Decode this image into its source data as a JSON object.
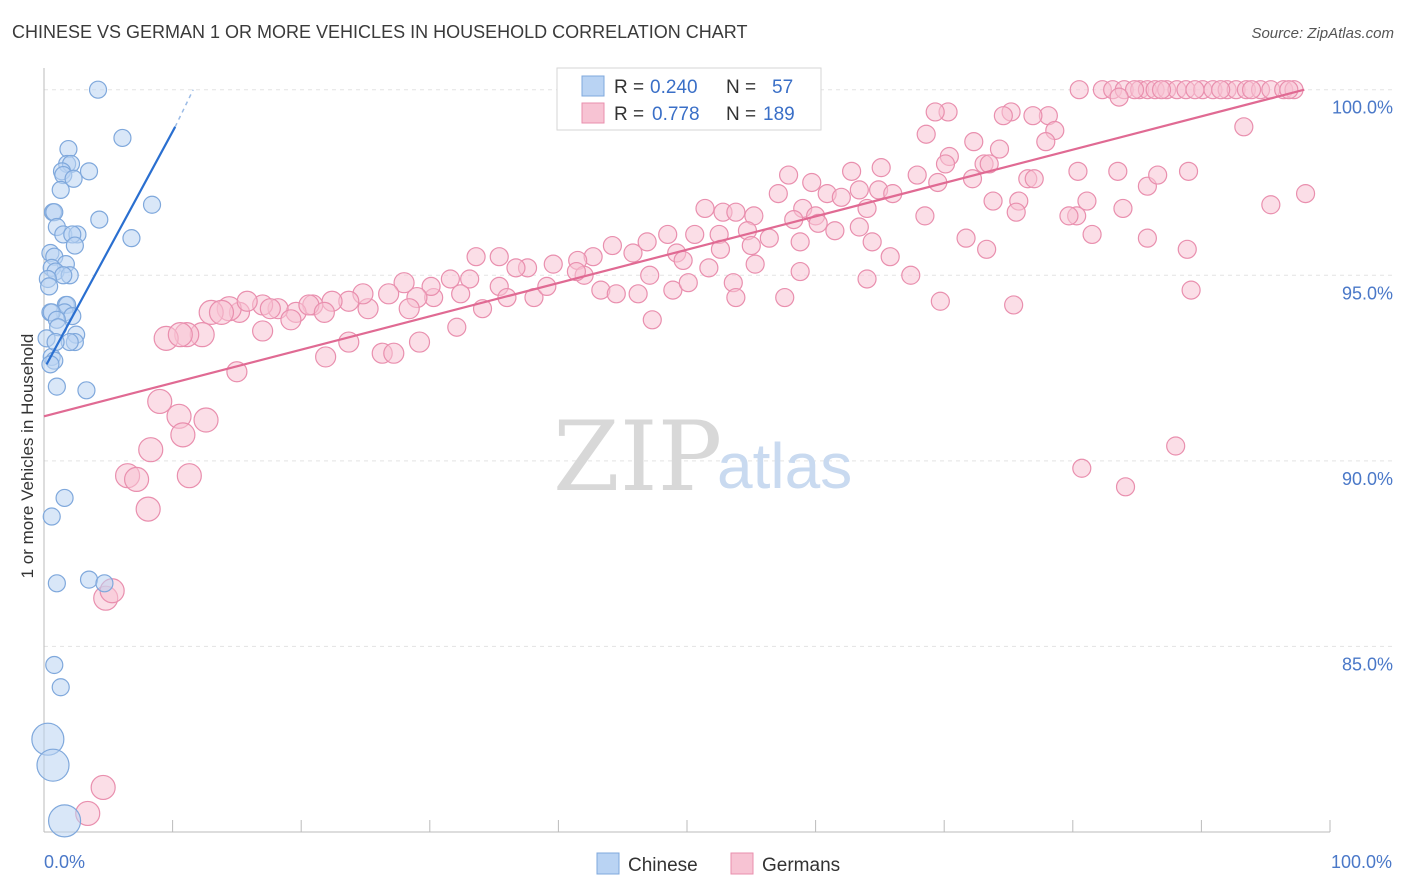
{
  "title": "CHINESE VS GERMAN 1 OR MORE VEHICLES IN HOUSEHOLD CORRELATION CHART",
  "source": "Source: ZipAtlas.com",
  "watermark": {
    "zip": "ZIP",
    "atlas": "atlas"
  },
  "colors": {
    "chinese_fill": "#b9d3f3",
    "chinese_stroke": "#7fa8dc",
    "chinese_line": "#2a6fd0",
    "german_fill": "#f7c3d3",
    "german_stroke": "#e98fae",
    "german_line": "#e06a93",
    "grid": "#e3e3e3",
    "axis": "#bbbbbb"
  },
  "legend_box": {
    "rows": [
      {
        "series": "Chinese",
        "r_label": "R = ",
        "r_value": "0.240",
        "n_label": "N = ",
        "n_value": "57"
      },
      {
        "series": "Germans",
        "r_label": "R = ",
        "r_value": "0.778",
        "n_label": "N = ",
        "n_value": "189"
      }
    ]
  },
  "chart_data": {
    "type": "scatter",
    "title": "CHINESE VS GERMAN 1 OR MORE VEHICLES IN HOUSEHOLD CORRELATION CHART",
    "xlabel": "",
    "ylabel": "1 or more Vehicles in Household",
    "xlim": [
      0,
      100
    ],
    "ylim": [
      80.0,
      100.8
    ],
    "y_ticks": [
      85.0,
      90.0,
      95.0,
      100.0
    ],
    "y_tick_labels": [
      "85.0%",
      "90.0%",
      "95.0%",
      "100.0%"
    ],
    "x_tick_labels": [
      "0.0%",
      "100.0%"
    ],
    "grid": true,
    "legend": "bottom-center",
    "series": [
      {
        "name": "Chinese",
        "trendline": {
          "x": [
            0.2,
            10.2
          ],
          "y": [
            92.6,
            99.0
          ],
          "dashed_to": [
            11.6,
            100.0
          ]
        },
        "points": [
          [
            4.2,
            100.0
          ],
          [
            6.1,
            98.7
          ],
          [
            1.9,
            98.4
          ],
          [
            1.8,
            98.0
          ],
          [
            2.1,
            98.0
          ],
          [
            1.4,
            97.8
          ],
          [
            3.5,
            97.8
          ],
          [
            1.5,
            97.7
          ],
          [
            2.3,
            97.6
          ],
          [
            1.3,
            97.3
          ],
          [
            8.4,
            96.9
          ],
          [
            0.7,
            96.7
          ],
          [
            0.8,
            96.7
          ],
          [
            4.3,
            96.5
          ],
          [
            1.0,
            96.3
          ],
          [
            1.5,
            96.1
          ],
          [
            2.6,
            96.1
          ],
          [
            2.2,
            96.1
          ],
          [
            6.8,
            96.0
          ],
          [
            2.4,
            95.8
          ],
          [
            0.5,
            95.6
          ],
          [
            0.8,
            95.5
          ],
          [
            1.7,
            95.3
          ],
          [
            0.6,
            95.2
          ],
          [
            0.9,
            95.1
          ],
          [
            2.0,
            95.0
          ],
          [
            1.5,
            95.0
          ],
          [
            0.3,
            94.9
          ],
          [
            0.4,
            94.7
          ],
          [
            1.7,
            94.2
          ],
          [
            1.8,
            94.2
          ],
          [
            1.6,
            94.0
          ],
          [
            0.5,
            94.0
          ],
          [
            0.6,
            94.0
          ],
          [
            2.2,
            93.9
          ],
          [
            1.0,
            93.8
          ],
          [
            1.1,
            93.6
          ],
          [
            2.5,
            93.4
          ],
          [
            0.2,
            93.3
          ],
          [
            2.4,
            93.2
          ],
          [
            0.6,
            92.8
          ],
          [
            0.8,
            92.7
          ],
          [
            0.5,
            92.6
          ],
          [
            1.0,
            92.0
          ],
          [
            3.3,
            91.9
          ],
          [
            1.6,
            89.0
          ],
          [
            0.6,
            88.5
          ],
          [
            3.5,
            86.8
          ],
          [
            4.7,
            86.7
          ],
          [
            1.0,
            86.7
          ],
          [
            0.8,
            84.5
          ],
          [
            1.3,
            83.9
          ],
          [
            0.3,
            82.5
          ],
          [
            0.7,
            81.8
          ],
          [
            1.6,
            80.3
          ],
          [
            2.0,
            93.2
          ],
          [
            0.9,
            93.2
          ]
        ]
      },
      {
        "name": "Germans",
        "trendline": {
          "x": [
            0,
            98.0
          ],
          "y": [
            91.2,
            100.0
          ]
        },
        "points": [
          [
            80.5,
            100.0
          ],
          [
            82.3,
            100.0
          ],
          [
            83.1,
            100.0
          ],
          [
            84.0,
            100.0
          ],
          [
            85.2,
            100.0
          ],
          [
            85.8,
            100.0
          ],
          [
            86.4,
            100.0
          ],
          [
            87.3,
            100.0
          ],
          [
            88.1,
            100.0
          ],
          [
            88.8,
            100.0
          ],
          [
            90.1,
            100.0
          ],
          [
            90.9,
            100.0
          ],
          [
            92.0,
            100.0
          ],
          [
            92.7,
            100.0
          ],
          [
            93.5,
            100.0
          ],
          [
            94.6,
            100.0
          ],
          [
            95.4,
            100.0
          ],
          [
            96.4,
            100.0
          ],
          [
            97.2,
            100.0
          ],
          [
            84.8,
            100.0
          ],
          [
            86.9,
            100.0
          ],
          [
            89.5,
            100.0
          ],
          [
            91.5,
            100.0
          ],
          [
            93.9,
            100.0
          ],
          [
            96.8,
            100.0
          ],
          [
            83.6,
            99.8
          ],
          [
            75.2,
            99.4
          ],
          [
            70.3,
            99.4
          ],
          [
            69.3,
            99.4
          ],
          [
            78.1,
            99.3
          ],
          [
            76.9,
            99.3
          ],
          [
            74.6,
            99.3
          ],
          [
            78.6,
            98.9
          ],
          [
            68.6,
            98.8
          ],
          [
            77.9,
            98.6
          ],
          [
            72.3,
            98.6
          ],
          [
            74.3,
            98.4
          ],
          [
            70.4,
            98.2
          ],
          [
            73.1,
            98.0
          ],
          [
            83.5,
            97.8
          ],
          [
            80.4,
            97.8
          ],
          [
            70.1,
            98.0
          ],
          [
            73.5,
            98.0
          ],
          [
            65.1,
            97.9
          ],
          [
            62.8,
            97.8
          ],
          [
            89.0,
            97.8
          ],
          [
            57.9,
            97.7
          ],
          [
            69.5,
            97.5
          ],
          [
            67.9,
            97.7
          ],
          [
            59.7,
            97.5
          ],
          [
            60.9,
            97.2
          ],
          [
            75.8,
            97.0
          ],
          [
            73.8,
            97.0
          ],
          [
            76.5,
            97.6
          ],
          [
            64.9,
            97.3
          ],
          [
            66.0,
            97.2
          ],
          [
            72.2,
            97.6
          ],
          [
            63.4,
            97.3
          ],
          [
            62.0,
            97.1
          ],
          [
            57.1,
            97.2
          ],
          [
            64.0,
            96.8
          ],
          [
            59.0,
            96.8
          ],
          [
            58.3,
            96.5
          ],
          [
            60.0,
            96.6
          ],
          [
            55.2,
            96.6
          ],
          [
            52.8,
            96.7
          ],
          [
            53.8,
            96.7
          ],
          [
            75.6,
            96.7
          ],
          [
            80.3,
            96.6
          ],
          [
            83.9,
            96.8
          ],
          [
            68.5,
            96.6
          ],
          [
            63.4,
            96.3
          ],
          [
            60.2,
            96.4
          ],
          [
            51.4,
            96.8
          ],
          [
            52.5,
            96.1
          ],
          [
            54.7,
            96.2
          ],
          [
            56.4,
            96.0
          ],
          [
            58.8,
            95.9
          ],
          [
            50.6,
            96.1
          ],
          [
            48.5,
            96.1
          ],
          [
            46.9,
            95.9
          ],
          [
            45.8,
            95.6
          ],
          [
            44.2,
            95.8
          ],
          [
            42.7,
            95.5
          ],
          [
            41.5,
            95.4
          ],
          [
            39.6,
            95.3
          ],
          [
            55.0,
            95.8
          ],
          [
            49.2,
            95.6
          ],
          [
            47.1,
            95.0
          ],
          [
            49.7,
            95.4
          ],
          [
            52.6,
            95.7
          ],
          [
            42.0,
            95.0
          ],
          [
            37.6,
            95.2
          ],
          [
            36.7,
            95.2
          ],
          [
            35.4,
            95.5
          ],
          [
            33.6,
            95.5
          ],
          [
            33.1,
            94.9
          ],
          [
            31.6,
            94.9
          ],
          [
            30.3,
            94.4
          ],
          [
            30.1,
            94.7
          ],
          [
            29.0,
            94.4
          ],
          [
            28.0,
            94.8
          ],
          [
            26.8,
            94.5
          ],
          [
            25.2,
            94.1
          ],
          [
            24.8,
            94.5
          ],
          [
            23.7,
            94.3
          ],
          [
            22.4,
            94.3
          ],
          [
            20.9,
            94.2
          ],
          [
            19.6,
            94.0
          ],
          [
            18.2,
            94.1
          ],
          [
            17.0,
            94.2
          ],
          [
            15.2,
            94.0
          ],
          [
            14.4,
            94.1
          ],
          [
            13.0,
            94.0
          ],
          [
            12.3,
            93.4
          ],
          [
            11.1,
            93.4
          ],
          [
            9.5,
            93.3
          ],
          [
            10.6,
            93.4
          ],
          [
            13.8,
            94.0
          ],
          [
            15.8,
            94.3
          ],
          [
            17.6,
            94.1
          ],
          [
            19.2,
            93.8
          ],
          [
            20.6,
            94.2
          ],
          [
            21.8,
            94.0
          ],
          [
            23.7,
            93.2
          ],
          [
            26.3,
            92.9
          ],
          [
            28.4,
            94.1
          ],
          [
            32.4,
            94.5
          ],
          [
            34.1,
            94.1
          ],
          [
            35.4,
            94.7
          ],
          [
            36.0,
            94.4
          ],
          [
            38.1,
            94.4
          ],
          [
            39.1,
            94.7
          ],
          [
            41.4,
            95.1
          ],
          [
            43.3,
            94.6
          ],
          [
            44.5,
            94.5
          ],
          [
            46.2,
            94.5
          ],
          [
            48.9,
            94.6
          ],
          [
            50.1,
            94.8
          ],
          [
            51.7,
            95.2
          ],
          [
            53.6,
            94.8
          ],
          [
            55.3,
            95.3
          ],
          [
            57.6,
            94.4
          ],
          [
            58.8,
            95.1
          ],
          [
            61.5,
            96.2
          ],
          [
            64.4,
            95.9
          ],
          [
            65.8,
            95.5
          ],
          [
            67.4,
            95.0
          ],
          [
            69.7,
            94.3
          ],
          [
            71.7,
            96.0
          ],
          [
            73.3,
            95.7
          ],
          [
            77.0,
            97.6
          ],
          [
            79.7,
            96.6
          ],
          [
            81.1,
            97.0
          ],
          [
            81.5,
            96.1
          ],
          [
            85.8,
            97.4
          ],
          [
            86.6,
            97.7
          ],
          [
            95.4,
            96.9
          ],
          [
            98.1,
            97.2
          ],
          [
            85.8,
            96.0
          ],
          [
            88.9,
            95.7
          ],
          [
            89.2,
            94.6
          ],
          [
            75.4,
            94.2
          ],
          [
            64.0,
            94.9
          ],
          [
            53.8,
            94.4
          ],
          [
            47.3,
            93.8
          ],
          [
            32.1,
            93.6
          ],
          [
            29.2,
            93.2
          ],
          [
            27.2,
            92.9
          ],
          [
            21.9,
            92.8
          ],
          [
            17.0,
            93.5
          ],
          [
            15.0,
            92.4
          ],
          [
            9.0,
            91.6
          ],
          [
            10.5,
            91.2
          ],
          [
            10.8,
            90.7
          ],
          [
            8.3,
            90.3
          ],
          [
            12.6,
            91.1
          ],
          [
            6.5,
            89.6
          ],
          [
            7.2,
            89.5
          ],
          [
            11.3,
            89.6
          ],
          [
            8.1,
            88.7
          ],
          [
            4.8,
            86.3
          ],
          [
            5.3,
            86.5
          ],
          [
            80.7,
            89.8
          ],
          [
            84.1,
            89.3
          ],
          [
            88.0,
            90.4
          ],
          [
            4.6,
            81.2
          ],
          [
            3.4,
            80.5
          ],
          [
            93.3,
            99.0
          ]
        ]
      }
    ]
  },
  "legend": [
    "Chinese",
    "Germans"
  ]
}
